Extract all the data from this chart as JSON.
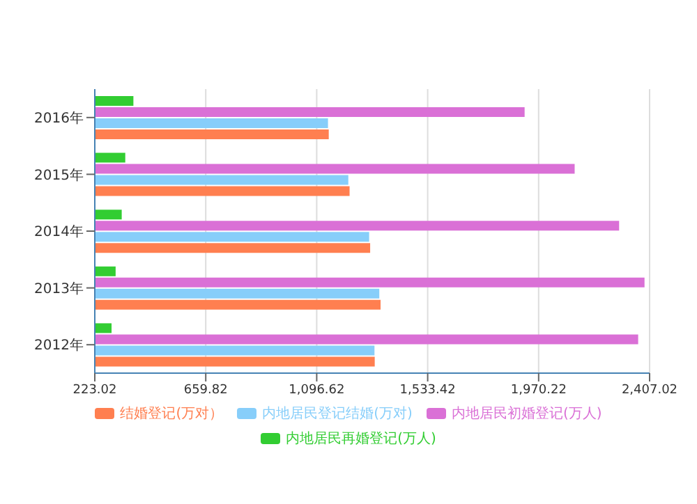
{
  "chart_data": {
    "type": "bar",
    "orientation": "horizontal",
    "categories": [
      "2016年",
      "2015年",
      "2014年",
      "2013年",
      "2012年"
    ],
    "series": [
      {
        "name": "结婚登记(万对）",
        "color": "#ff7f50",
        "values": [
          1144,
          1226,
          1307,
          1348,
          1325
        ]
      },
      {
        "name": "内地居民登记结婚(万对)",
        "color": "#87cefa",
        "values": [
          1141,
          1221,
          1303,
          1343,
          1324
        ]
      },
      {
        "name": "内地居民初婚登记(万人)",
        "color": "#da70d6",
        "values": [
          1915,
          2112,
          2287,
          2387,
          2362
        ]
      },
      {
        "name": "内地居民再婚登记(万人)",
        "color": "#32cd32",
        "values": [
          375,
          343,
          329,
          305,
          289
        ]
      }
    ],
    "xlim": [
      223.02,
      2407.02
    ],
    "xticks": [
      223.02,
      659.82,
      {
        "value": 1096.62,
        "label": "1,096.62"
      },
      {
        "value": 1533.42,
        "label": "1,533.42"
      },
      {
        "value": 1970.22,
        "label": "1,970.22"
      },
      {
        "value": 2407.02,
        "label": "2,407.02"
      }
    ],
    "grid": "x",
    "legend": "bottom"
  }
}
